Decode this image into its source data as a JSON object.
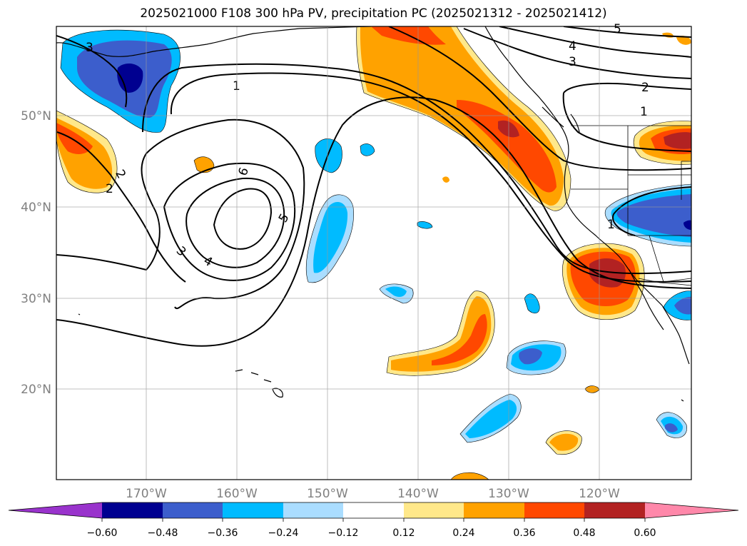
{
  "title": "2025021000 F108 300 hPa PV, precipitation PC (2025021312 - 2025021412)",
  "map": {
    "lat_labels": [
      "50°N",
      "40°N",
      "30°N",
      "20°N"
    ],
    "lon_labels": [
      "170°W",
      "160°W",
      "150°W",
      "140°W",
      "130°W",
      "120°W"
    ],
    "contour_labels": [
      "3",
      "1",
      "2",
      "6",
      "5",
      "4",
      "3",
      "4",
      "3",
      "2",
      "1",
      "5",
      "2",
      "1"
    ]
  },
  "colorbar": {
    "ticks": [
      "−0.60",
      "−0.48",
      "−0.36",
      "−0.24",
      "−0.12",
      "0.12",
      "0.24",
      "0.36",
      "0.48",
      "0.60"
    ],
    "colors": {
      "below": "#9933cc",
      "c1": "#000090",
      "c2": "#3c5ecc",
      "c3": "#00bbff",
      "c4": "#aaddff",
      "c5": "#ffffff",
      "c6": "#ffe88a",
      "c7": "#ffa200",
      "c8": "#ff4800",
      "c9": "#b22222",
      "above": "#ff88aa"
    }
  }
}
